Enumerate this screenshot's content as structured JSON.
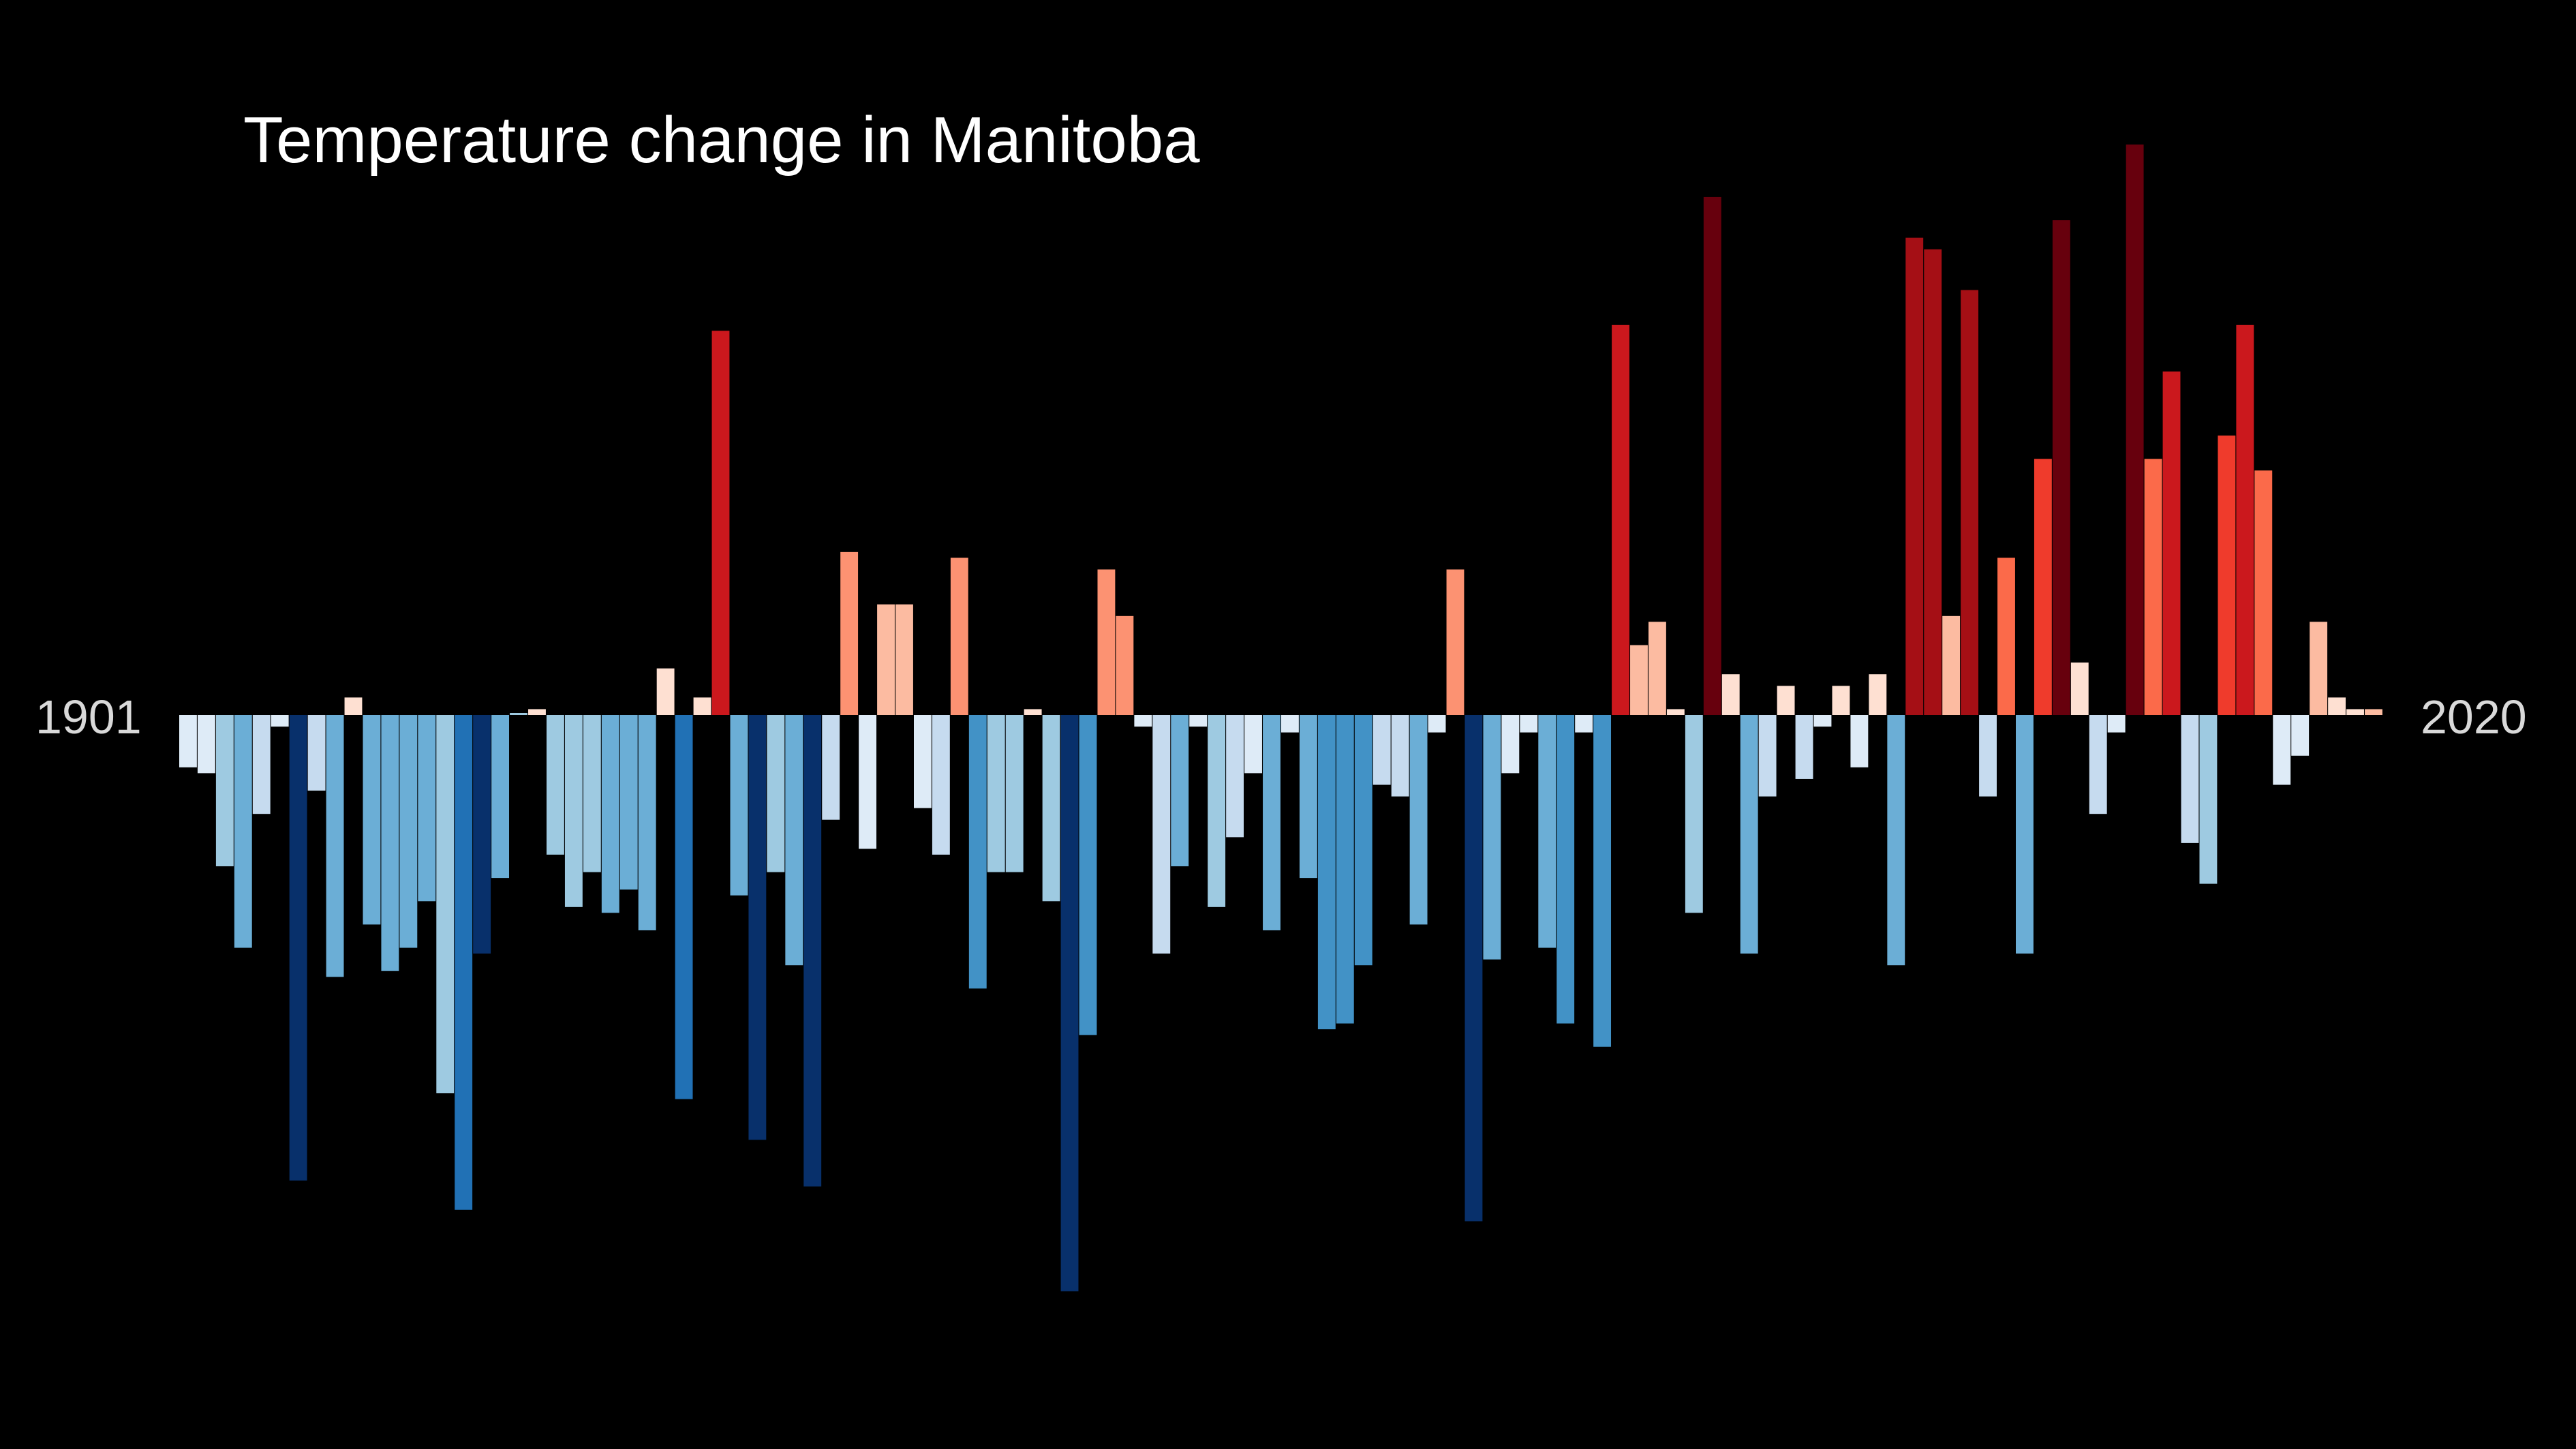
{
  "chart_data": {
    "type": "bar",
    "title": "Temperature change in Manitoba",
    "x_start_label": "1901",
    "x_end_label": "2020",
    "xlabel": "",
    "ylabel": "",
    "grid": false,
    "legend": "none",
    "baseline": 0,
    "ylim": [
      -1.0,
      1.0
    ],
    "years": [
      1901,
      1902,
      1903,
      1904,
      1905,
      1906,
      1907,
      1908,
      1909,
      1910,
      1911,
      1912,
      1913,
      1914,
      1915,
      1916,
      1917,
      1918,
      1919,
      1920,
      1921,
      1922,
      1923,
      1924,
      1925,
      1926,
      1927,
      1928,
      1929,
      1930,
      1931,
      1932,
      1933,
      1934,
      1935,
      1936,
      1937,
      1938,
      1939,
      1940,
      1941,
      1942,
      1943,
      1944,
      1945,
      1946,
      1947,
      1948,
      1949,
      1950,
      1951,
      1952,
      1953,
      1954,
      1955,
      1956,
      1957,
      1958,
      1959,
      1960,
      1961,
      1962,
      1963,
      1964,
      1965,
      1966,
      1967,
      1968,
      1969,
      1970,
      1971,
      1972,
      1973,
      1974,
      1975,
      1976,
      1977,
      1978,
      1979,
      1980,
      1981,
      1982,
      1983,
      1984,
      1985,
      1986,
      1987,
      1988,
      1989,
      1990,
      1991,
      1992,
      1993,
      1994,
      1995,
      1996,
      1997,
      1998,
      1999,
      2000,
      2001,
      2002,
      2003,
      2004,
      2005,
      2006,
      2007,
      2008,
      2009,
      2010,
      2011,
      2012,
      2013,
      2014,
      2015,
      2016,
      2017,
      2018,
      2019,
      2020
    ],
    "values": [
      -0.09,
      -0.1,
      -0.26,
      -0.4,
      -0.17,
      -0.02,
      -0.8,
      -0.13,
      -0.45,
      0.03,
      -0.36,
      -0.44,
      -0.4,
      -0.32,
      -0.65,
      -0.85,
      -0.41,
      -0.28,
      0,
      0.01,
      -0.24,
      -0.33,
      -0.27,
      -0.34,
      -0.3,
      -0.37,
      0.08,
      -0.66,
      0.03,
      0.66,
      -0.31,
      -0.73,
      -0.27,
      -0.43,
      -0.81,
      -0.18,
      0.28,
      -0.23,
      0.19,
      0.19,
      -0.16,
      -0.24,
      0.27,
      -0.47,
      -0.27,
      -0.27,
      0.01,
      -0.32,
      -0.99,
      -0.55,
      0.25,
      0.17,
      -0.02,
      -0.41,
      -0.26,
      -0.02,
      -0.33,
      -0.21,
      -0.1,
      -0.37,
      -0.03,
      -0.28,
      -0.54,
      -0.53,
      -0.43,
      -0.12,
      -0.14,
      -0.36,
      -0.03,
      0.25,
      -0.87,
      -0.42,
      -0.1,
      -0.03,
      -0.4,
      -0.53,
      -0.03,
      -0.57,
      0.67,
      0.12,
      0.16,
      0.01,
      -0.34,
      0.89,
      0.07,
      -0.41,
      -0.14,
      0.05,
      -0.11,
      -0.02,
      0.05,
      -0.09,
      0.07,
      -0.43,
      0.82,
      0.8,
      0.17,
      0.73,
      -0.14,
      0.27,
      -0.41,
      0.44,
      0.85,
      0.09,
      -0.17,
      -0.03,
      0.98,
      0.44,
      0.59,
      -0.22,
      -0.29,
      0.48,
      0.67,
      0.42,
      -0.12,
      -0.07,
      0.16,
      0.03,
      0.01,
      0.01
    ],
    "colors": [
      "#deebf7",
      "#deebf7",
      "#9ecae1",
      "#6baed6",
      "#c6dbef",
      "#deebf7",
      "#08306b",
      "#c6dbef",
      "#6baed6",
      "#fee0d2",
      "#6baed6",
      "#6baed6",
      "#6baed6",
      "#6baed6",
      "#9ecae1",
      "#2171b5",
      "#08306b",
      "#6baed6",
      "#9ecae1",
      "#fee0d2",
      "#9ecae1",
      "#9ecae1",
      "#9ecae1",
      "#6baed6",
      "#6baed6",
      "#6baed6",
      "#fee0d2",
      "#2171b5",
      "#fee0d2",
      "#cb181d",
      "#6baed6",
      "#08306b",
      "#9ecae1",
      "#6baed6",
      "#08306b",
      "#c6dbef",
      "#fc9272",
      "#deebf7",
      "#fcbba1",
      "#fcbba1",
      "#deebf7",
      "#c6dbef",
      "#fc9272",
      "#4292c6",
      "#9ecae1",
      "#9ecae1",
      "#fee0d2",
      "#9ecae1",
      "#08306b",
      "#4292c6",
      "#fc9272",
      "#fc9272",
      "#deebf7",
      "#c6dbef",
      "#6baed6",
      "#deebf7",
      "#9ecae1",
      "#c6dbef",
      "#deebf7",
      "#6baed6",
      "#deebf7",
      "#6baed6",
      "#4292c6",
      "#4292c6",
      "#4292c6",
      "#c6dbef",
      "#c6dbef",
      "#6baed6",
      "#deebf7",
      "#fc9272",
      "#08306b",
      "#6baed6",
      "#deebf7",
      "#deebf7",
      "#6baed6",
      "#4292c6",
      "#deebf7",
      "#4292c6",
      "#cb181d",
      "#fcbba1",
      "#fcbba1",
      "#fee0d2",
      "#9ecae1",
      "#67000d",
      "#fee0d2",
      "#6baed6",
      "#c6dbef",
      "#fee0d2",
      "#c6dbef",
      "#deebf7",
      "#fee0d2",
      "#deebf7",
      "#fee0d2",
      "#6baed6",
      "#a50f15",
      "#a50f15",
      "#fcbba1",
      "#a50f15",
      "#c6dbef",
      "#fb6a4a",
      "#6baed6",
      "#ef3b2c",
      "#67000d",
      "#fee0d2",
      "#c6dbef",
      "#deebf7",
      "#67000d",
      "#fb6a4a",
      "#cb181d",
      "#c6dbef",
      "#9ecae1",
      "#ef3b2c",
      "#cb181d",
      "#fb6a4a",
      "#deebf7",
      "#deebf7",
      "#fcbba1",
      "#fee0d2",
      "#fee0d2",
      "#fcbba1"
    ]
  }
}
